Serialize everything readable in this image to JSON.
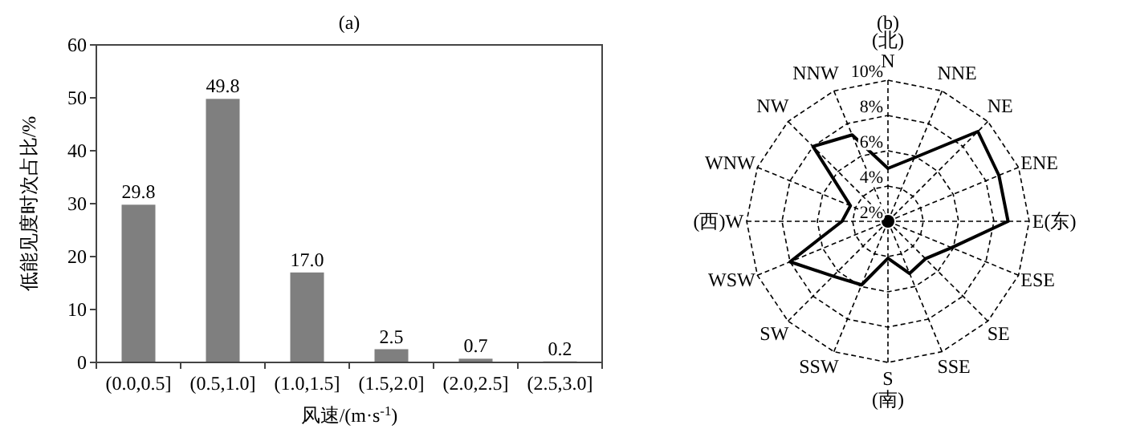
{
  "chart_data": [
    {
      "type": "bar",
      "title": "(a)",
      "xlabel": "风速/(m·s$^{-1}$)",
      "ylabel": "低能见度时次占比/%",
      "categories": [
        "(0.0,0.5]",
        "(0.5,1.0]",
        "(1.0,1.5]",
        "(1.5,2.0]",
        "(2.0,2.5]",
        "(2.5,3.0]"
      ],
      "values": [
        29.8,
        49.8,
        17.0,
        2.5,
        0.7,
        0.2
      ],
      "color": "#7f7f7f",
      "ylim": [
        0,
        60
      ],
      "yticks": [
        0,
        10,
        20,
        30,
        40,
        50,
        60
      ],
      "value_labels": [
        "29.8",
        "49.8",
        "17.0",
        "2.5",
        "0.7",
        "0.2"
      ],
      "grid": false
    },
    {
      "type": "radar",
      "title": "(b)",
      "categories": [
        "(北)\nN",
        "NNE",
        "NE",
        "ENE",
        "E(东)",
        "ESE",
        "SE",
        "SSE",
        "S\n(南)",
        "SSW",
        "SW",
        "WSW",
        "(西)W",
        "WNW",
        "NW",
        "NNW"
      ],
      "series": [
        {
          "color": "#000000",
          "values": [
            5.0,
            5.9,
            9.2,
            8.8,
            8.8,
            5.9,
            5.0,
            5.2,
            4.1,
            5.9,
            6.4,
            8.0,
            4.6,
            4.3,
            8.0,
            7.3
          ]
        }
      ],
      "ylim": [
        2,
        10
      ],
      "yticks": [
        {
          "value": 2,
          "label": "2%"
        },
        {
          "value": 4,
          "label": "4%"
        },
        {
          "value": 6,
          "label": "6%"
        },
        {
          "value": 8,
          "label": "8%"
        },
        {
          "value": 10,
          "label": "10%"
        }
      ],
      "grid": true,
      "marker": "none",
      "line_style": "solid"
    }
  ]
}
